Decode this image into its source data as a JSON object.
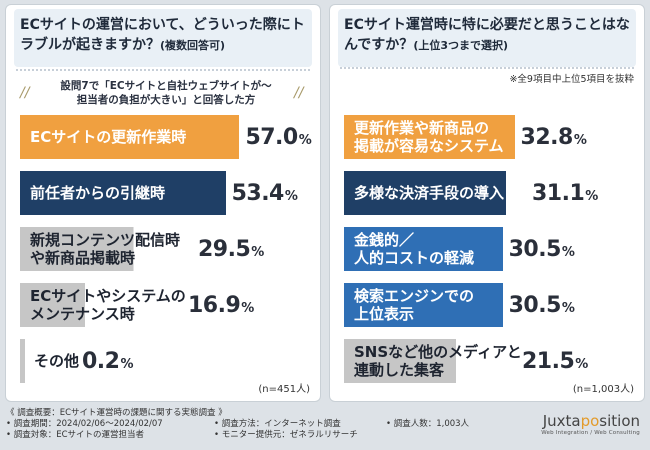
{
  "left": {
    "title_main": "ECサイトの運営において、どういった際にトラブルが起きますか？",
    "title_suffix": "(複数回答可)",
    "subnote_line1": "設問7で「ECサイトと自社ウェブサイトが～",
    "subnote_line2": "担当者の負担が大きい」と回答した方",
    "n": "(n=451人)"
  },
  "right": {
    "title_main": "ECサイト運営時に特に必要だと思うことはなんですか？",
    "title_suffix": "(上位3つまで選択)",
    "note": "※全9項目中上位5項目を抜粋",
    "n": "(n=1,003人)"
  },
  "chart_data": [
    {
      "type": "bar",
      "orientation": "horizontal",
      "title": "ECサイトの運営において、どういった際にトラブルが起きますか？(複数回答可)",
      "categories": [
        "ECサイトの更新作業時",
        "前任者からの引継時",
        "新規コンテンツ配信時や新商品掲載時",
        "ECサイトやシステムのメンテナンス時",
        "その他"
      ],
      "labels": [
        [
          "ECサイトの更新作業時"
        ],
        [
          "前任者からの引継時"
        ],
        [
          "新規コンテンツ配信時",
          "や新商品掲載時"
        ],
        [
          "ECサイトやシステムの",
          "メンテナンス時"
        ],
        [
          "その他"
        ]
      ],
      "values": [
        57.0,
        53.4,
        29.5,
        16.9,
        0.2
      ],
      "value_labels": [
        "57.0",
        "53.4",
        "29.5",
        "16.9",
        "0.2"
      ],
      "unit": "%",
      "colors": [
        "#f0a040",
        "#1f3f66",
        "#c8c8c8",
        "#c8c8c8",
        "#c8c8c8"
      ],
      "n": "(n=451人)"
    },
    {
      "type": "bar",
      "orientation": "horizontal",
      "title": "ECサイト運営時に特に必要だと思うことはなんですか？(上位3つまで選択)",
      "categories": [
        "更新作業や新商品の掲載が容易なシステム",
        "多様な決済手段の導入",
        "金銭的／人的コストの軽減",
        "検索エンジンでの上位表示",
        "SNSなど他のメディアと連動した集客"
      ],
      "labels": [
        [
          "更新作業や新商品の",
          "掲載が容易なシステム"
        ],
        [
          "多様な決済手段の導入"
        ],
        [
          "金銭的／",
          "人的コストの軽減"
        ],
        [
          "検索エンジンでの",
          "上位表示"
        ],
        [
          "SNSなど他のメディアと",
          "連動した集客"
        ]
      ],
      "values": [
        32.8,
        31.1,
        30.5,
        30.5,
        21.5
      ],
      "value_labels": [
        "32.8",
        "31.1",
        "30.5",
        "30.5",
        "21.5"
      ],
      "unit": "%",
      "colors": [
        "#f0a040",
        "#1f3f66",
        "#2f6fb5",
        "#2f6fb5",
        "#c8c8c8"
      ],
      "n": "(n=1,003人)"
    }
  ],
  "footer": {
    "outline": "《 調査概要：ECサイト運営時の課題に関する実態調査 》",
    "period": "• 調査期間：2024/02/06～2024/02/07",
    "target": "• 調査対象：ECサイトの運営担当者",
    "method": "• 調査方法：インターネット調査",
    "provider": "• モニター提供元：ゼネラルリサーチ",
    "count": "• 調査人数：1,003人"
  },
  "logo": {
    "pre": "Juxta",
    "accent": "po",
    "post": "sition",
    "tagline": "Web Integration / Web Consulting"
  }
}
